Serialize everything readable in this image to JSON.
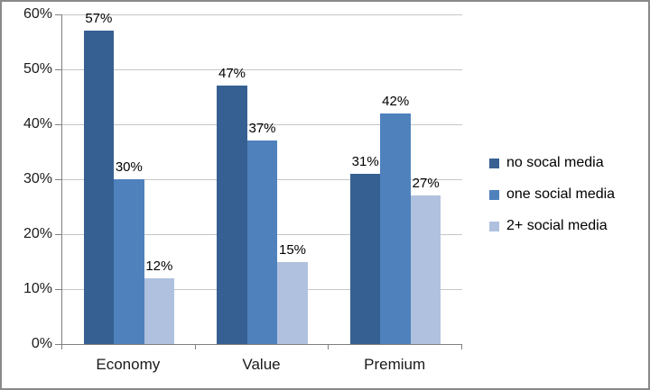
{
  "chart_data": {
    "type": "bar",
    "title": "",
    "categories": [
      "Economy",
      "Value",
      "Premium"
    ],
    "series": [
      {
        "name": "no socal media",
        "color": "#366092",
        "values": [
          57,
          47,
          31
        ],
        "labels": [
          "57%",
          "47%",
          "31%"
        ]
      },
      {
        "name": "one social media",
        "color": "#4F81BD",
        "values": [
          30,
          37,
          42
        ],
        "labels": [
          "30%",
          "37%",
          "42%"
        ]
      },
      {
        "name": "2+ social media",
        "color": "#AFC1DE",
        "values": [
          12,
          15,
          27
        ],
        "labels": [
          "12%",
          "15%",
          "27%"
        ]
      }
    ],
    "xlabel": "",
    "ylabel": "",
    "ylim": [
      0,
      60
    ],
    "ytick_step": 10,
    "ytick_labels": [
      "0%",
      "10%",
      "20%",
      "30%",
      "40%",
      "50%",
      "60%"
    ],
    "grid": true,
    "legend_position": "right",
    "value_labels_shown": true
  },
  "colors": {
    "background": "#FFFFFF",
    "frame_border": "#898989",
    "axis": "#808080",
    "gridline": "#C6C6C6",
    "label_text": "#000000"
  }
}
